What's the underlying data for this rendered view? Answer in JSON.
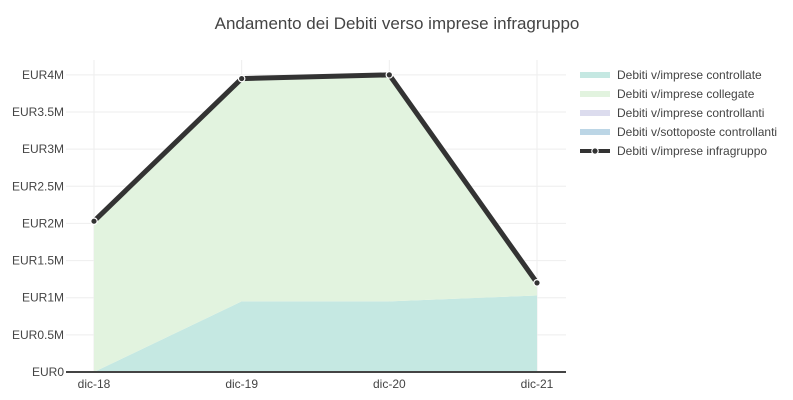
{
  "chart_data": {
    "type": "area",
    "title": "Andamento dei Debiti verso imprese infragruppo",
    "xlabel": "",
    "ylabel": "",
    "categories": [
      "dic-18",
      "dic-19",
      "dic-20",
      "dic-21"
    ],
    "y_ticks": [
      "EUR0",
      "EUR0.5M",
      "EUR1M",
      "EUR1.5M",
      "EUR2M",
      "EUR2.5M",
      "EUR3M",
      "EUR3.5M",
      "EUR4M"
    ],
    "ylim": [
      0,
      4200000
    ],
    "grid": true,
    "legend_position": "right",
    "stacked": true,
    "series": [
      {
        "name": "Debiti v/imprese controllate",
        "kind": "area",
        "color": "#c5e8e2",
        "values": [
          0,
          950000,
          950000,
          1030000
        ]
      },
      {
        "name": "Debiti v/imprese collegate",
        "kind": "area",
        "color": "#e2f3df",
        "values": [
          2030000,
          3000000,
          3050000,
          170000
        ]
      },
      {
        "name": "Debiti v/imprese controllanti",
        "kind": "area",
        "color": "#dcdcee",
        "values": [
          0,
          0,
          0,
          0
        ]
      },
      {
        "name": "Debiti v/sottoposte controllanti",
        "kind": "area",
        "color": "#bcd6e6",
        "values": [
          0,
          0,
          0,
          0
        ]
      },
      {
        "name": "Debiti v/imprese infragruppo",
        "kind": "line",
        "color": "#333333",
        "values": [
          2030000,
          3950000,
          4000000,
          1200000
        ]
      }
    ]
  }
}
